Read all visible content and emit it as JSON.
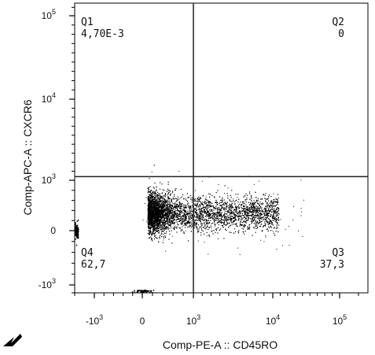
{
  "chart_data": {
    "type": "scatter",
    "title": "",
    "xlabel": "Comp-PE-A :: CD45RO",
    "ylabel": "Comp-APC-A :: CXCR6",
    "x_scale": "biexponential",
    "y_scale": "biexponential",
    "xlim": [
      -2000,
      250000
    ],
    "ylim": [
      -2000,
      250000
    ],
    "x_ticks": [
      {
        "value": -1000,
        "base": "-10",
        "exp": "3"
      },
      {
        "value": 0,
        "base": "0",
        "exp": ""
      },
      {
        "value": 1000,
        "base": "10",
        "exp": "3"
      },
      {
        "value": 10000,
        "base": "10",
        "exp": "4"
      },
      {
        "value": 100000,
        "base": "10",
        "exp": "5"
      }
    ],
    "y_ticks": [
      {
        "value": -1000,
        "base": "-10",
        "exp": "3"
      },
      {
        "value": 0,
        "base": "0",
        "exp": ""
      },
      {
        "value": 1000,
        "base": "10",
        "exp": "3"
      },
      {
        "value": 10000,
        "base": "10",
        "exp": "4"
      },
      {
        "value": 100000,
        "base": "10",
        "exp": "5"
      }
    ],
    "gate": {
      "x": 1000,
      "y": 1400
    },
    "quadrants": [
      {
        "name": "Q1",
        "value": "4,70E-3"
      },
      {
        "name": "Q2",
        "value": "0"
      },
      {
        "name": "Q3",
        "value": "37,3"
      },
      {
        "name": "Q4",
        "value": "62,7"
      }
    ],
    "population": {
      "x_range": [
        100,
        18000
      ],
      "y_center": 350,
      "color": "#000000"
    },
    "grid": false,
    "legend": "none"
  }
}
